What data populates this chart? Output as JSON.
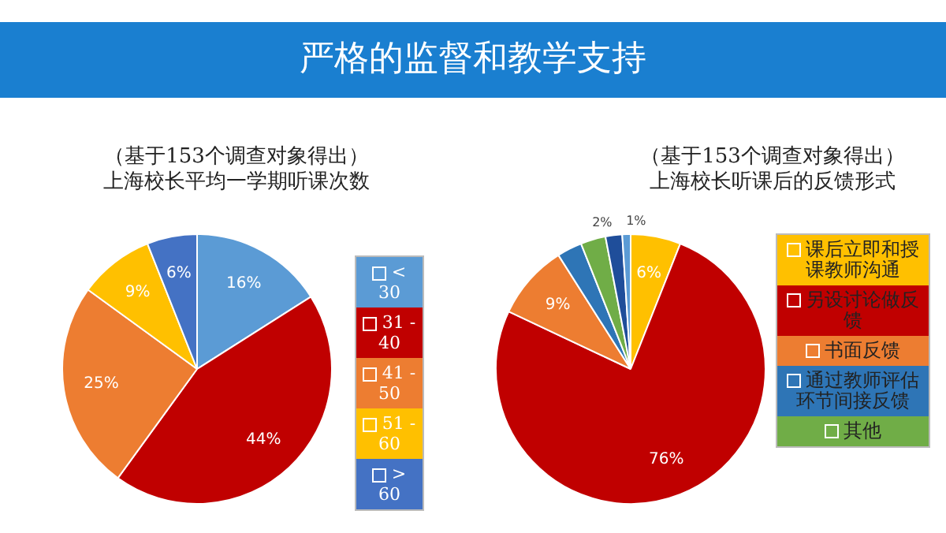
{
  "chart_data": [
    {
      "type": "pie",
      "title": "上海校长平均一学期听课次数",
      "subtitle": "（基于153个调查对象得出）",
      "annotations": [
        "严格的监督和教学支持"
      ],
      "categories": [
        "< 30",
        "31 - 40",
        "41 - 50",
        "51 - 60",
        "> 60"
      ],
      "values": [
        16,
        44,
        25,
        9,
        6
      ],
      "colors": [
        "#5b9bd5",
        "#c00000",
        "#ed7d31",
        "#ffc000",
        "#4472c4"
      ],
      "value_labels": [
        "16%",
        "44%",
        "25%",
        "9%",
        "6%"
      ],
      "legend": "right"
    },
    {
      "type": "pie",
      "title": "上海校长听课后的反馈形式",
      "subtitle": "（基于153个调查对象得出）",
      "categories": [
        "课后立即和授课教师沟通",
        "另设讨论做反馈",
        "书面反馈",
        "通过教师评估环节间接反馈",
        "其他",
        null,
        null
      ],
      "values": [
        6,
        76,
        9,
        3,
        3,
        2,
        1
      ],
      "colors": [
        "#ffc000",
        "#c00000",
        "#ed7d31",
        "#2e75b6",
        "#70ad47",
        "#1f4e9a",
        "#5b9bd5"
      ],
      "value_labels": [
        "6%",
        "76%",
        "9%",
        null,
        null,
        "2%",
        "1%"
      ],
      "legend": "right"
    }
  ]
}
